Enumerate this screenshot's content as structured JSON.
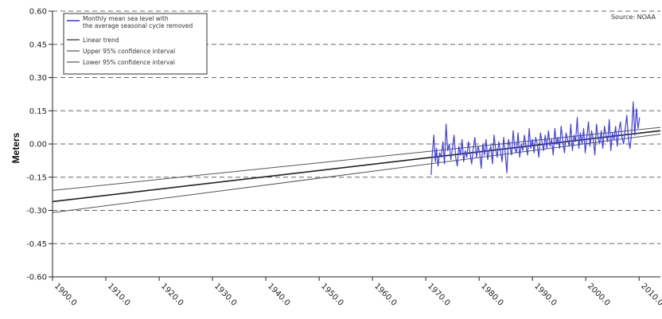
{
  "chart_data": {
    "type": "line",
    "ylabel": "Meters",
    "source": "Source: NOAA",
    "xlim": [
      1900,
      2014
    ],
    "ylim": [
      -0.6,
      0.6
    ],
    "x_ticks": [
      1900,
      1910,
      1920,
      1930,
      1940,
      1950,
      1960,
      1970,
      1980,
      1990,
      2000,
      2010
    ],
    "x_tick_labels": [
      "1900.0",
      "1910.0",
      "1920.0",
      "1930.0",
      "1940.0",
      "1950.0",
      "1960.0",
      "1970.0",
      "1980.0",
      "1990.0",
      "2000.0",
      "2010.0"
    ],
    "y_ticks": [
      0.6,
      0.45,
      0.3,
      0.15,
      0.0,
      -0.15,
      -0.3,
      -0.45,
      -0.6
    ],
    "y_tick_labels": [
      "0.60",
      "0.45",
      "0.30",
      "0.15",
      "0.00",
      "-0.15",
      "-0.30",
      "-0.45",
      "-0.60"
    ],
    "grid": "horizontal dashed",
    "legend_position": "top-left",
    "legend": [
      {
        "label": "Monthly mean sea level with the average seasonal cycle removed",
        "color": "#3f3fe0"
      },
      {
        "label": "Linear trend",
        "color": "#222222"
      },
      {
        "label": "Upper 95% confidence interval",
        "color": "#555555"
      },
      {
        "label": "Lower 95% confidence interval",
        "color": "#555555"
      }
    ],
    "series": [
      {
        "name": "Monthly mean sea level with the average seasonal cycle removed",
        "color": "#3f3fe0",
        "x": [
          1971.0,
          1971.2,
          1971.5,
          1971.8,
          1972.0,
          1972.3,
          1972.6,
          1972.9,
          1973.2,
          1973.5,
          1973.8,
          1974.1,
          1974.4,
          1974.7,
          1975.0,
          1975.3,
          1975.6,
          1975.9,
          1976.2,
          1976.5,
          1976.8,
          1977.1,
          1977.4,
          1977.7,
          1978.0,
          1978.3,
          1978.6,
          1978.9,
          1979.2,
          1979.5,
          1979.8,
          1980.1,
          1980.4,
          1980.7,
          1981.0,
          1981.3,
          1981.6,
          1981.9,
          1982.2,
          1982.5,
          1982.8,
          1983.1,
          1983.4,
          1983.7,
          1984.0,
          1984.3,
          1984.6,
          1984.9,
          1985.2,
          1985.5,
          1985.8,
          1986.1,
          1986.4,
          1986.7,
          1987.0,
          1987.3,
          1987.6,
          1987.9,
          1988.2,
          1988.5,
          1988.8,
          1989.1,
          1989.4,
          1989.7,
          1990.0,
          1990.3,
          1990.6,
          1990.9,
          1991.2,
          1991.5,
          1991.8,
          1992.1,
          1992.4,
          1992.7,
          1993.0,
          1993.3,
          1993.6,
          1993.9,
          1994.2,
          1994.5,
          1994.8,
          1995.1,
          1995.4,
          1995.7,
          1996.0,
          1996.3,
          1996.6,
          1996.9,
          1997.2,
          1997.5,
          1997.8,
          1998.1,
          1998.4,
          1998.7,
          1999.0,
          1999.3,
          1999.6,
          1999.9,
          2000.2,
          2000.5,
          2000.8,
          2001.1,
          2001.4,
          2001.7,
          2002.0,
          2002.3,
          2002.6,
          2002.9,
          2003.2,
          2003.5,
          2003.8,
          2004.1,
          2004.4,
          2004.7,
          2005.0,
          2005.3,
          2005.6,
          2005.9,
          2006.2,
          2006.5,
          2006.8,
          2007.1,
          2007.4,
          2007.7,
          2008.0,
          2008.3,
          2008.6,
          2008.9,
          2009.2,
          2009.5,
          2009.8,
          2010.1
        ],
        "y": [
          -0.14,
          -0.05,
          0.04,
          -0.08,
          -0.02,
          -0.1,
          -0.04,
          -0.06,
          0.01,
          -0.09,
          0.09,
          -0.03,
          0.0,
          -0.07,
          -0.02,
          0.04,
          -0.06,
          -0.1,
          -0.01,
          -0.05,
          0.02,
          -0.08,
          -0.03,
          -0.06,
          0.01,
          -0.04,
          -0.09,
          -0.02,
          0.03,
          -0.06,
          -0.01,
          -0.04,
          -0.11,
          0.0,
          -0.05,
          0.02,
          -0.07,
          -0.03,
          -0.01,
          -0.09,
          0.04,
          -0.02,
          -0.06,
          0.01,
          -0.03,
          -0.08,
          0.03,
          -0.04,
          -0.13,
          0.02,
          -0.01,
          -0.05,
          0.06,
          -0.02,
          -0.04,
          0.05,
          -0.06,
          0.0,
          -0.03,
          0.04,
          -0.01,
          -0.05,
          0.07,
          -0.02,
          0.02,
          -0.04,
          0.03,
          0.0,
          -0.06,
          0.05,
          0.01,
          -0.03,
          0.04,
          -0.02,
          0.06,
          -0.01,
          0.02,
          -0.05,
          0.07,
          0.0,
          0.03,
          -0.02,
          0.08,
          0.01,
          -0.04,
          0.05,
          0.02,
          -0.01,
          0.09,
          -0.03,
          0.04,
          0.01,
          0.12,
          -0.02,
          0.05,
          0.0,
          0.07,
          -0.04,
          0.03,
          0.1,
          -0.01,
          0.06,
          0.02,
          -0.05,
          0.09,
          0.03,
          0.0,
          0.06,
          -0.02,
          0.08,
          0.04,
          0.01,
          0.11,
          -0.03,
          0.05,
          0.02,
          0.08,
          -0.01,
          0.06,
          0.1,
          0.03,
          0.0,
          0.07,
          0.13,
          0.02,
          -0.02,
          0.05,
          0.19,
          0.04,
          0.16,
          0.07,
          0.12
        ]
      },
      {
        "name": "Linear trend",
        "color": "#222222",
        "x": [
          1900,
          2014
        ],
        "y": [
          -0.26,
          0.06
        ]
      },
      {
        "name": "Upper 95% confidence interval",
        "color": "#555555",
        "x": [
          1900,
          2014
        ],
        "y": [
          -0.21,
          0.075
        ]
      },
      {
        "name": "Lower 95% confidence interval",
        "color": "#555555",
        "x": [
          1900,
          2014
        ],
        "y": [
          -0.31,
          0.045
        ]
      }
    ]
  }
}
